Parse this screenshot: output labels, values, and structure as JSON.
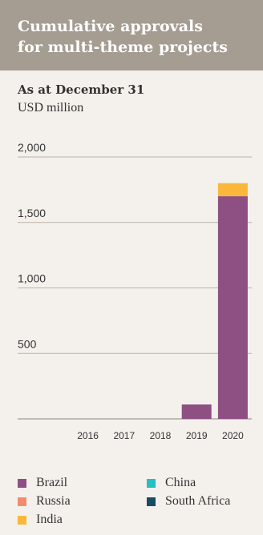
{
  "header": {
    "title_line1": "Cumulative approvals",
    "title_line2": "for multi-theme projects"
  },
  "subtitle": "As at December 31",
  "unit": "USD million",
  "colors": {
    "header_bg": "#a59c92",
    "background": "#f4f1ec",
    "brazil": "#8e4f82",
    "russia": "#f28c6e",
    "india": "#fbb73b",
    "china": "#25bfc4",
    "south_africa": "#1c4a66"
  },
  "chart_data": {
    "type": "bar",
    "stacked": true,
    "title": "Cumulative approvals for multi-theme projects",
    "subtitle": "As at December 31",
    "ylabel": "USD million",
    "categories": [
      "2016",
      "2017",
      "2018",
      "2019",
      "2020"
    ],
    "yticks": [
      "500",
      "1,000",
      "1,500",
      "2,000"
    ],
    "ylim": [
      0,
      2000
    ],
    "grid": true,
    "legend_position": "bottom",
    "series": [
      {
        "name": "Brazil",
        "color": "#8e4f82",
        "values": [
          0,
          0,
          0,
          110,
          1700
        ]
      },
      {
        "name": "Russia",
        "color": "#f28c6e",
        "values": [
          0,
          0,
          0,
          0,
          0
        ]
      },
      {
        "name": "India",
        "color": "#fbb73b",
        "values": [
          0,
          0,
          0,
          0,
          100
        ]
      },
      {
        "name": "China",
        "color": "#25bfc4",
        "values": [
          0,
          0,
          0,
          0,
          0
        ]
      },
      {
        "name": "South Africa",
        "color": "#1c4a66",
        "values": [
          0,
          0,
          0,
          0,
          0
        ]
      }
    ]
  }
}
